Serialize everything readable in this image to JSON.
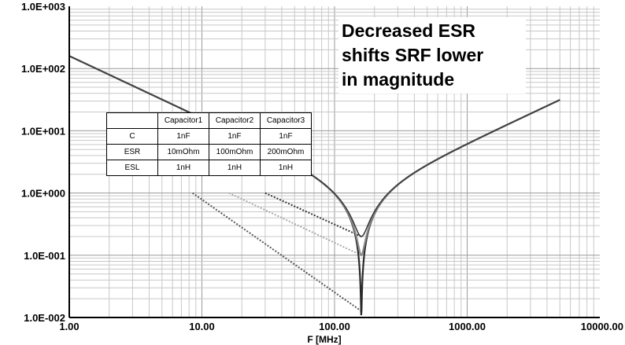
{
  "chart_data": {
    "type": "line",
    "title": "",
    "xlabel": "F [MHz]",
    "ylabel": "",
    "xscale": "log",
    "yscale": "log",
    "xlim": [
      1.0,
      10000.0
    ],
    "ylim": [
      0.01,
      1000.0
    ],
    "grid": true,
    "x_tick_labels": [
      "1.00",
      "10.00",
      "100.00",
      "1000.00",
      "10000.00"
    ],
    "x_tick_values": [
      1,
      10,
      100,
      1000,
      10000
    ],
    "y_tick_labels": [
      "1.0E-002",
      "1.0E-001",
      "1.0E+000",
      "1.0E+001",
      "1.0E+002",
      "1.0E+003"
    ],
    "y_tick_values": [
      0.01,
      0.1,
      1,
      10,
      100,
      1000
    ],
    "srf_mhz": 159,
    "series": [
      {
        "name": "Capacitor1",
        "esr_ohm": 0.01,
        "c_f": 1e-09,
        "l_h": 1e-09,
        "color": "#2a2a2a",
        "width": 2.2
      },
      {
        "name": "Capacitor2",
        "esr_ohm": 0.1,
        "c_f": 1e-09,
        "l_h": 1e-09,
        "color": "#8a8a8a",
        "width": 2.2
      },
      {
        "name": "Capacitor3",
        "esr_ohm": 0.2,
        "c_f": 1e-09,
        "l_h": 1e-09,
        "color": "#3a3a3a",
        "width": 1.6
      }
    ],
    "asymptotes": [
      {
        "name": "Capacitor1",
        "points": [
          [
            8.5,
            1.0
          ],
          [
            159,
            0.0127
          ]
        ],
        "color": "#555555"
      },
      {
        "name": "Capacitor2",
        "points": [
          [
            16,
            1.0
          ],
          [
            159,
            0.1
          ]
        ],
        "color": "#aaaaaa"
      },
      {
        "name": "Capacitor3",
        "points": [
          [
            30,
            1.0
          ],
          [
            159,
            0.2
          ]
        ],
        "color": "#333333"
      }
    ],
    "envelope": {
      "x": [
        1.0,
        10.0,
        30.0,
        100.0,
        159.0,
        300.0,
        1000.0,
        5000.0
      ],
      "y": [
        159,
        15.9,
        5.3,
        1.3,
        0.2,
        1.35,
        5.9,
        31.4
      ]
    }
  },
  "annotation": {
    "lines": [
      "Decreased ESR",
      "shifts SRF lower",
      "in magnitude"
    ]
  },
  "legend_table": {
    "headers": [
      "",
      "Capacitor1",
      "Capacitor2",
      "Capacitor3"
    ],
    "rows": [
      {
        "label": "C",
        "values": [
          "1nF",
          "1nF",
          "1nF"
        ]
      },
      {
        "label": "ESR",
        "values": [
          "10mOhm",
          "100mOhm",
          "200mOhm"
        ]
      },
      {
        "label": "ESL",
        "values": [
          "1nH",
          "1nH",
          "1nH"
        ]
      }
    ]
  }
}
